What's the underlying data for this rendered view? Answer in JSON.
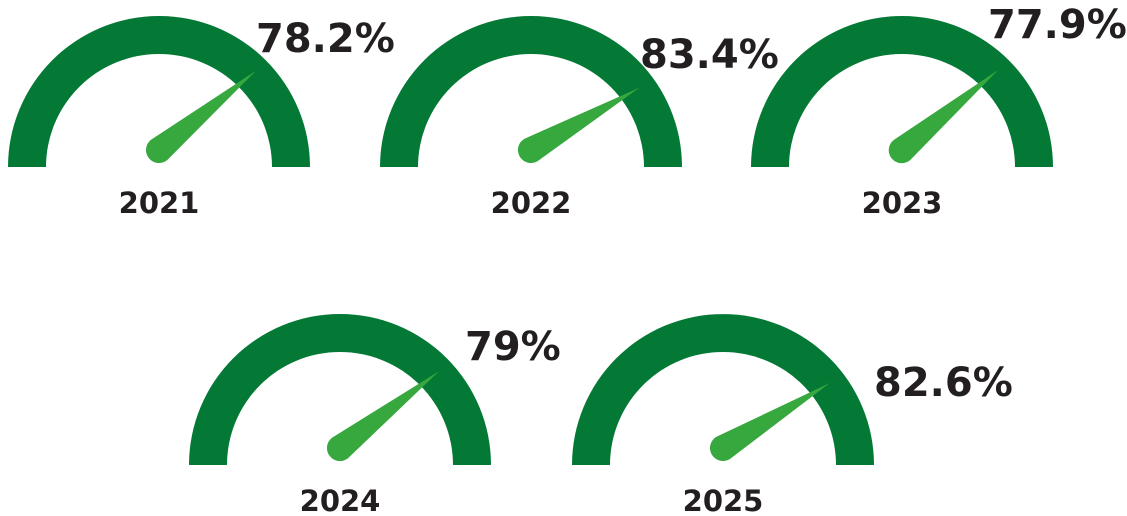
{
  "colors": {
    "arc": "#047935",
    "needle": "#36a83e",
    "text": "#231f20",
    "background": "#ffffff"
  },
  "chart_data": {
    "type": "gauge",
    "unit": "%",
    "scale": [
      0,
      100
    ],
    "gauges": [
      {
        "year": "2021",
        "value": 78.2,
        "label": "78.2%"
      },
      {
        "year": "2022",
        "value": 83.4,
        "label": "83.4%"
      },
      {
        "year": "2023",
        "value": 77.9,
        "label": "77.9%"
      },
      {
        "year": "2024",
        "value": 79,
        "label": "79%"
      },
      {
        "year": "2025",
        "value": 82.6,
        "label": "82.6%"
      }
    ]
  }
}
